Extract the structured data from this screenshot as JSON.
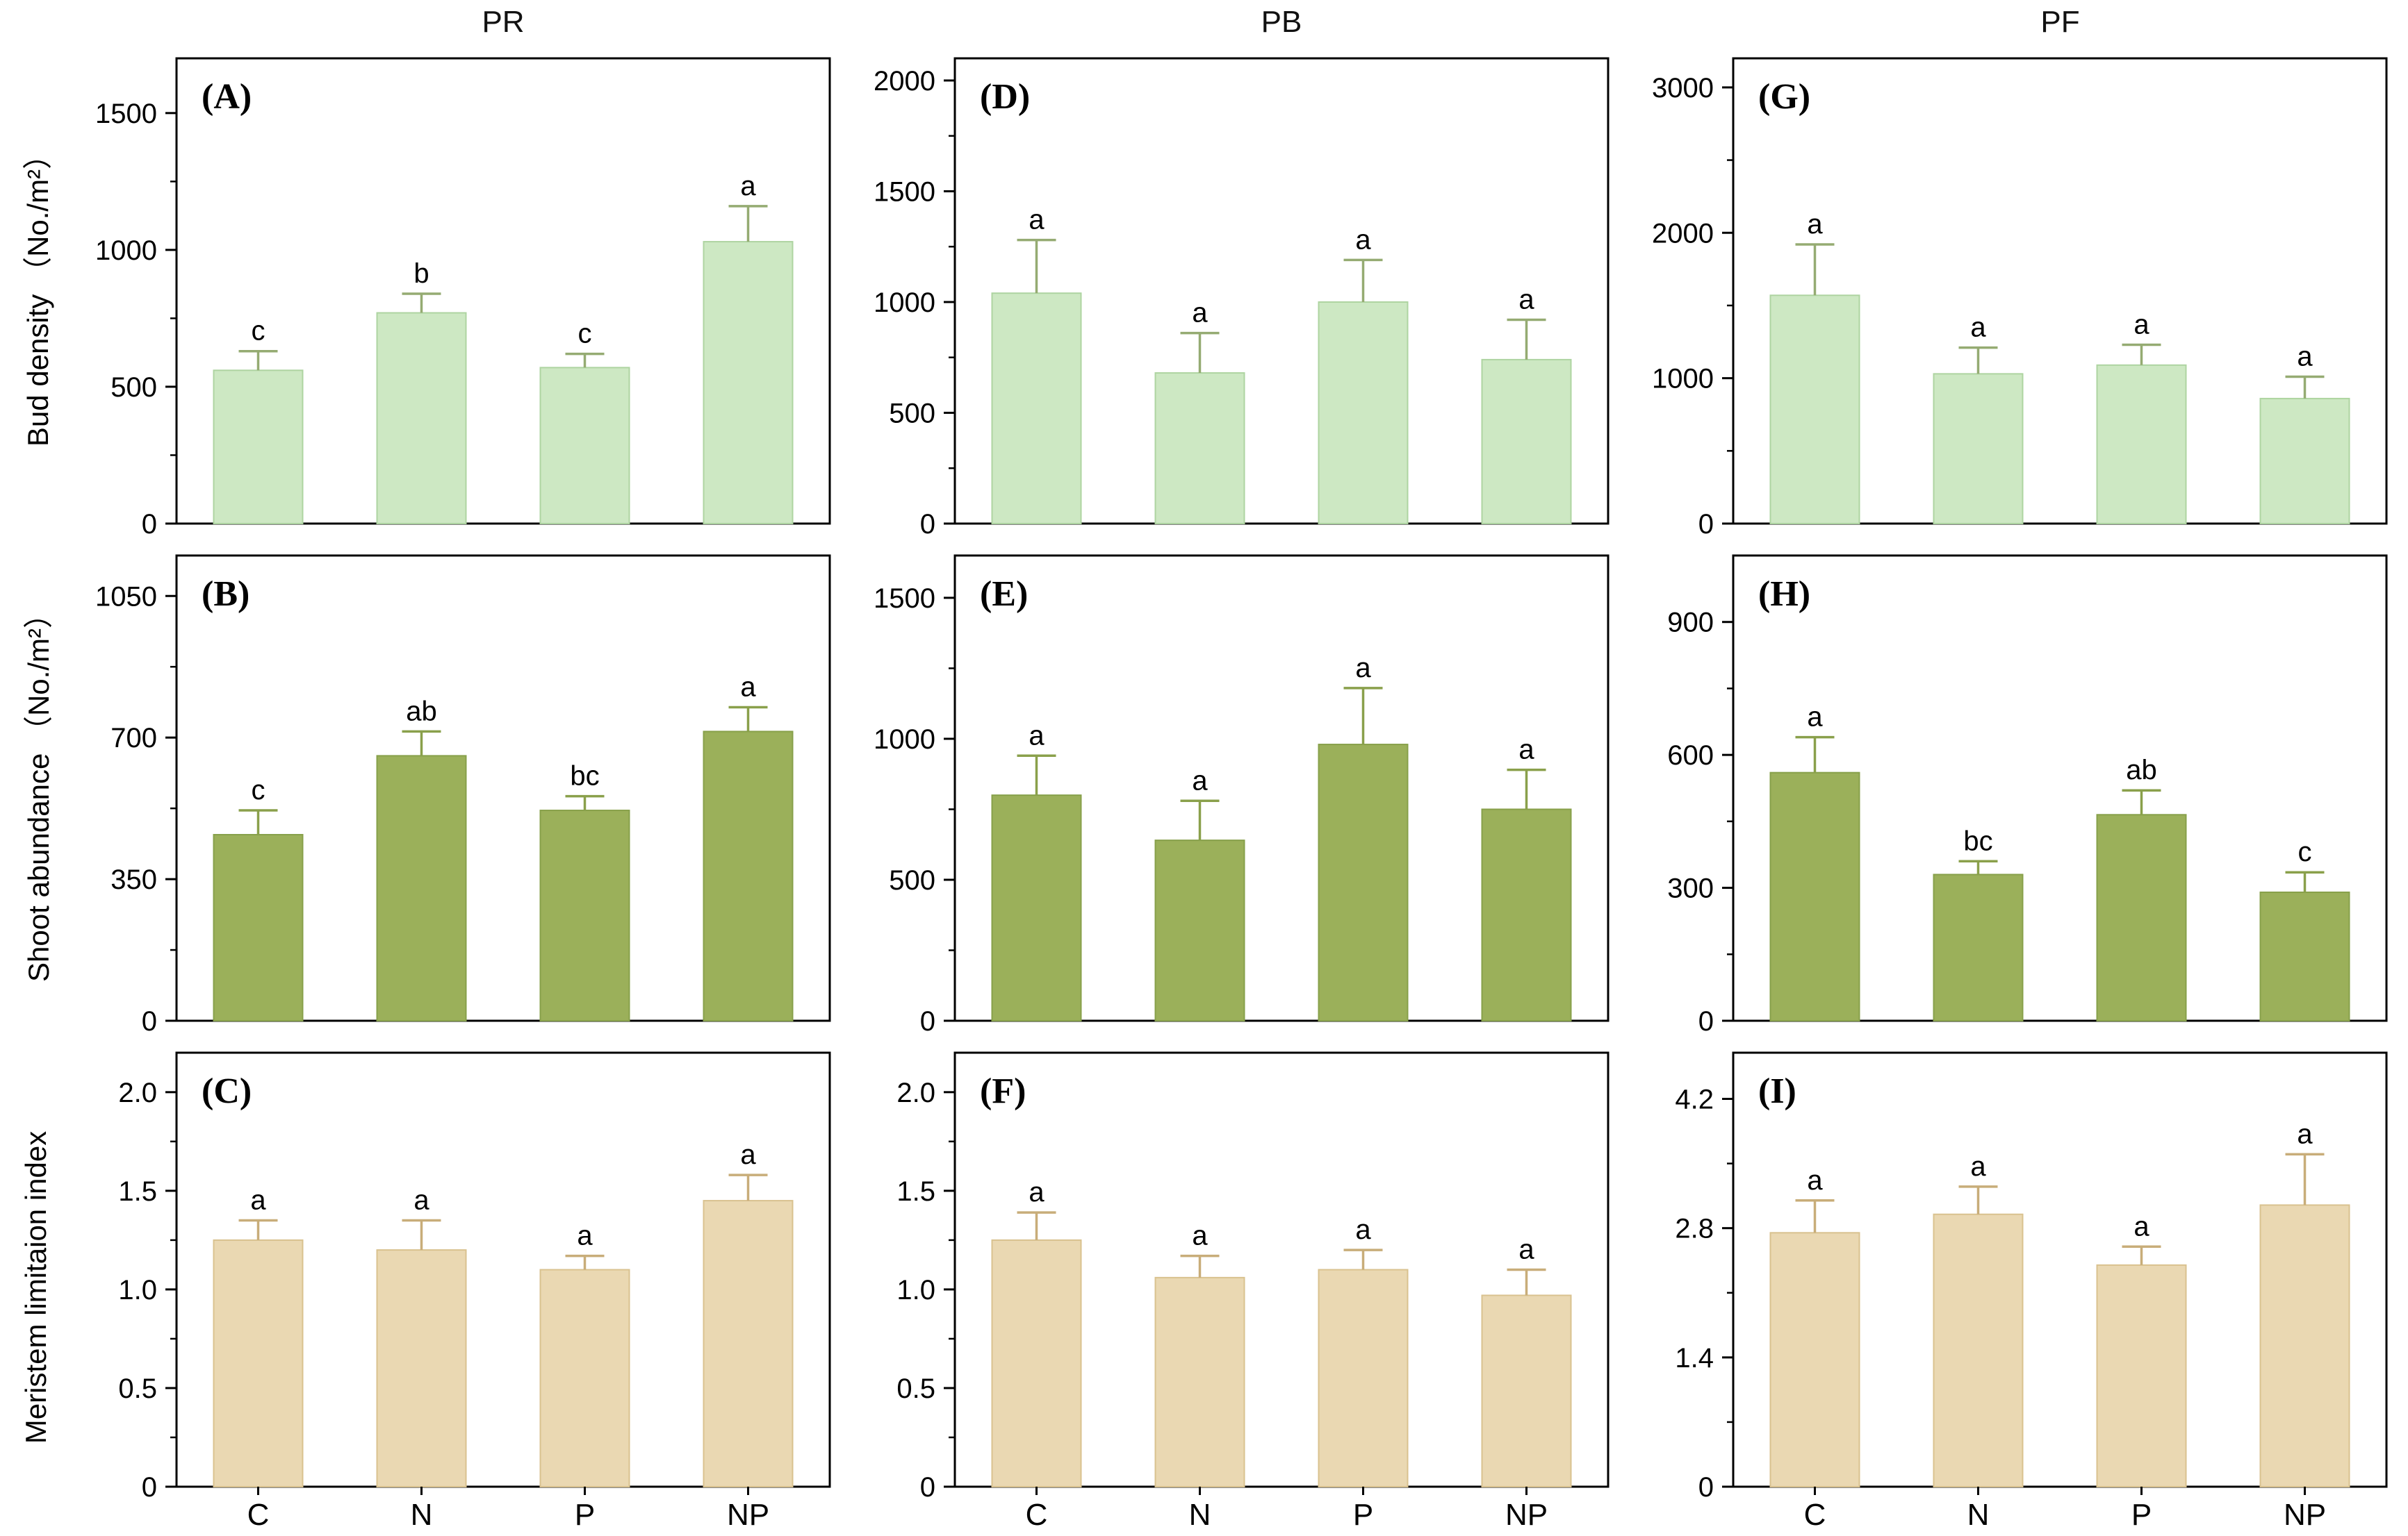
{
  "columns": [
    "PR",
    "PB",
    "PF"
  ],
  "row_labels": [
    "Bud density （No./m²）",
    "Shoot abundance （No./m²）",
    "Meristem limitaion index"
  ],
  "categories": [
    "C",
    "N",
    "P",
    "NP"
  ],
  "colors": {
    "bud_density_bar": "#cde8c3",
    "bud_density_edge": "#aed4a1",
    "bud_density_err": "#95ab72",
    "shoot_abundance_bar": "#9bb05a",
    "shoot_abundance_edge": "#87a04a",
    "shoot_abundance_err": "#8aa04b",
    "meristem_bar": "#ead8b2",
    "meristem_edge": "#d9c28f",
    "meristem_err": "#c8ad79",
    "axis": "#000000"
  },
  "chart_data": [
    {
      "type": "bar",
      "panel": "A",
      "panel_label": "(A)",
      "column": "PR",
      "row": "Bud density",
      "categories": [
        "C",
        "N",
        "P",
        "NP"
      ],
      "values": [
        560,
        770,
        570,
        1030
      ],
      "errors": [
        70,
        70,
        50,
        130
      ],
      "sig_letters": [
        "c",
        "b",
        "c",
        "a"
      ],
      "ylim": [
        0,
        1700
      ],
      "yticks": [
        0,
        500,
        1000,
        1500
      ],
      "ytick_labels": [
        "0",
        "500",
        "1000",
        "1500"
      ],
      "show_x_labels": false,
      "bar_color": "#cde8c3",
      "bar_edge": "#aed4a1",
      "err_color": "#95ab72"
    },
    {
      "type": "bar",
      "panel": "D",
      "panel_label": "(D)",
      "column": "PB",
      "row": "Bud density",
      "categories": [
        "C",
        "N",
        "P",
        "NP"
      ],
      "values": [
        1040,
        680,
        1000,
        740
      ],
      "errors": [
        240,
        180,
        190,
        180
      ],
      "sig_letters": [
        "a",
        "a",
        "a",
        "a"
      ],
      "ylim": [
        0,
        2100
      ],
      "yticks": [
        0,
        500,
        1000,
        1500,
        2000
      ],
      "ytick_labels": [
        "0",
        "500",
        "1000",
        "1500",
        "2000"
      ],
      "show_x_labels": false,
      "bar_color": "#cde8c3",
      "bar_edge": "#aed4a1",
      "err_color": "#95ab72"
    },
    {
      "type": "bar",
      "panel": "G",
      "panel_label": "(G)",
      "column": "PF",
      "row": "Bud density",
      "categories": [
        "C",
        "N",
        "P",
        "NP"
      ],
      "values": [
        1570,
        1030,
        1090,
        860
      ],
      "errors": [
        350,
        180,
        140,
        150
      ],
      "sig_letters": [
        "a",
        "a",
        "a",
        "a"
      ],
      "ylim": [
        0,
        3200
      ],
      "yticks": [
        0,
        1000,
        2000,
        3000
      ],
      "ytick_labels": [
        "0",
        "1000",
        "2000",
        "3000"
      ],
      "show_x_labels": false,
      "bar_color": "#cde8c3",
      "bar_edge": "#aed4a1",
      "err_color": "#95ab72"
    },
    {
      "type": "bar",
      "panel": "B",
      "panel_label": "(B)",
      "column": "PR",
      "row": "Shoot abundance",
      "categories": [
        "C",
        "N",
        "P",
        "NP"
      ],
      "values": [
        460,
        655,
        520,
        715
      ],
      "errors": [
        60,
        60,
        35,
        60
      ],
      "sig_letters": [
        "c",
        "ab",
        "bc",
        "a"
      ],
      "ylim": [
        0,
        1150
      ],
      "yticks": [
        0,
        350,
        700,
        1050
      ],
      "ytick_labels": [
        "0",
        "350",
        "700",
        "1050"
      ],
      "show_x_labels": false,
      "bar_color": "#9bb05a",
      "bar_edge": "#87a04a",
      "err_color": "#8aa04b"
    },
    {
      "type": "bar",
      "panel": "E",
      "panel_label": "(E)",
      "column": "PB",
      "row": "Shoot abundance",
      "categories": [
        "C",
        "N",
        "P",
        "NP"
      ],
      "values": [
        800,
        640,
        980,
        750
      ],
      "errors": [
        140,
        140,
        200,
        140
      ],
      "sig_letters": [
        "a",
        "a",
        "a",
        "a"
      ],
      "ylim": [
        0,
        1650
      ],
      "yticks": [
        0,
        500,
        1000,
        1500
      ],
      "ytick_labels": [
        "0",
        "500",
        "1000",
        "1500"
      ],
      "show_x_labels": false,
      "bar_color": "#9bb05a",
      "bar_edge": "#87a04a",
      "err_color": "#8aa04b"
    },
    {
      "type": "bar",
      "panel": "H",
      "panel_label": "(H)",
      "column": "PF",
      "row": "Shoot abundance",
      "categories": [
        "C",
        "N",
        "P",
        "NP"
      ],
      "values": [
        560,
        330,
        465,
        290
      ],
      "errors": [
        80,
        30,
        55,
        45
      ],
      "sig_letters": [
        "a",
        "bc",
        "ab",
        "c"
      ],
      "ylim": [
        0,
        1050
      ],
      "yticks": [
        0,
        300,
        600,
        900
      ],
      "ytick_labels": [
        "0",
        "300",
        "600",
        "900"
      ],
      "show_x_labels": false,
      "bar_color": "#9bb05a",
      "bar_edge": "#87a04a",
      "err_color": "#8aa04b"
    },
    {
      "type": "bar",
      "panel": "C",
      "panel_label": "(C)",
      "column": "PR",
      "row": "Meristem limitaion index",
      "categories": [
        "C",
        "N",
        "P",
        "NP"
      ],
      "values": [
        1.25,
        1.2,
        1.1,
        1.45
      ],
      "errors": [
        0.1,
        0.15,
        0.07,
        0.13
      ],
      "sig_letters": [
        "a",
        "a",
        "a",
        "a"
      ],
      "ylim": [
        0,
        2.2
      ],
      "yticks": [
        0,
        0.5,
        1.0,
        1.5,
        2.0
      ],
      "ytick_labels": [
        "0",
        "0.5",
        "1.0",
        "1.5",
        "2.0"
      ],
      "show_x_labels": true,
      "bar_color": "#ead8b2",
      "bar_edge": "#d9c28f",
      "err_color": "#c8ad79"
    },
    {
      "type": "bar",
      "panel": "F",
      "panel_label": "(F)",
      "column": "PB",
      "row": "Meristem limitaion index",
      "categories": [
        "C",
        "N",
        "P",
        "NP"
      ],
      "values": [
        1.25,
        1.06,
        1.1,
        0.97
      ],
      "errors": [
        0.14,
        0.11,
        0.1,
        0.13
      ],
      "sig_letters": [
        "a",
        "a",
        "a",
        "a"
      ],
      "ylim": [
        0,
        2.2
      ],
      "yticks": [
        0,
        0.5,
        1.0,
        1.5,
        2.0
      ],
      "ytick_labels": [
        "0",
        "0.5",
        "1.0",
        "1.5",
        "2.0"
      ],
      "show_x_labels": true,
      "bar_color": "#ead8b2",
      "bar_edge": "#d9c28f",
      "err_color": "#c8ad79"
    },
    {
      "type": "bar",
      "panel": "I",
      "panel_label": "(I)",
      "column": "PF",
      "row": "Meristem limitaion index",
      "categories": [
        "C",
        "N",
        "P",
        "NP"
      ],
      "values": [
        2.75,
        2.95,
        2.4,
        3.05
      ],
      "errors": [
        0.35,
        0.3,
        0.2,
        0.55
      ],
      "sig_letters": [
        "a",
        "a",
        "a",
        "a"
      ],
      "ylim": [
        0,
        4.7
      ],
      "yticks": [
        0,
        1.4,
        2.8,
        4.2
      ],
      "ytick_labels": [
        "0",
        "1.4",
        "2.8",
        "4.2"
      ],
      "show_x_labels": true,
      "bar_color": "#ead8b2",
      "bar_edge": "#d9c28f",
      "err_color": "#c8ad79"
    }
  ]
}
